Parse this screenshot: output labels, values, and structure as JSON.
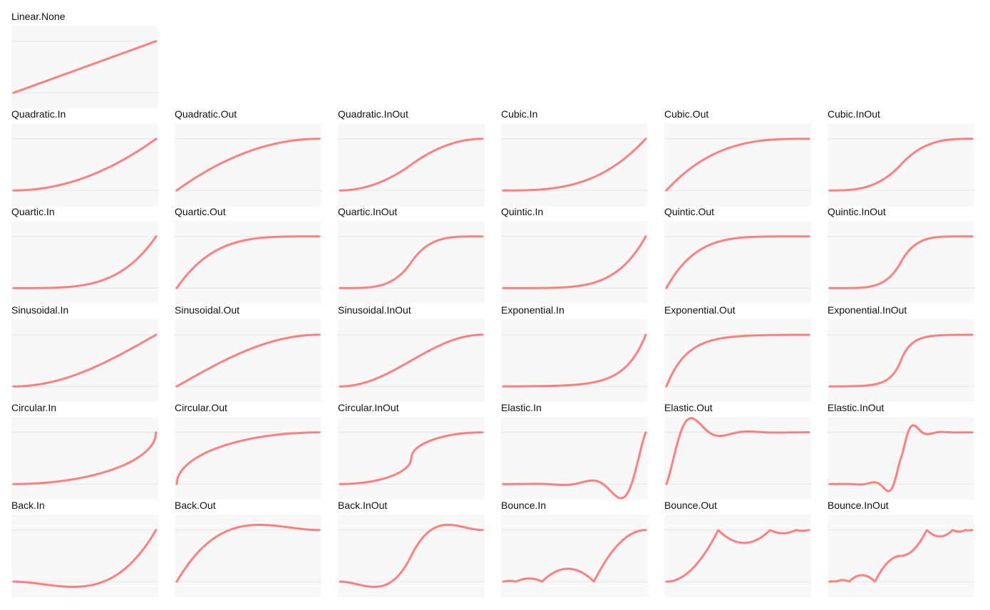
{
  "chart_data": [
    {
      "type": "line",
      "title": "Linear.None",
      "fn": "Linear.None",
      "ylim": [
        -0.3,
        1.3
      ]
    },
    {
      "type": "line",
      "title": "Quadratic.In",
      "fn": "Quadratic.In",
      "ylim": [
        -0.3,
        1.3
      ]
    },
    {
      "type": "line",
      "title": "Quadratic.Out",
      "fn": "Quadratic.Out",
      "ylim": [
        -0.3,
        1.3
      ]
    },
    {
      "type": "line",
      "title": "Quadratic.InOut",
      "fn": "Quadratic.InOut",
      "ylim": [
        -0.3,
        1.3
      ]
    },
    {
      "type": "line",
      "title": "Cubic.In",
      "fn": "Cubic.In",
      "ylim": [
        -0.3,
        1.3
      ]
    },
    {
      "type": "line",
      "title": "Cubic.Out",
      "fn": "Cubic.Out",
      "ylim": [
        -0.3,
        1.3
      ]
    },
    {
      "type": "line",
      "title": "Cubic.InOut",
      "fn": "Cubic.InOut",
      "ylim": [
        -0.3,
        1.3
      ]
    },
    {
      "type": "line",
      "title": "Quartic.In",
      "fn": "Quartic.In",
      "ylim": [
        -0.3,
        1.3
      ]
    },
    {
      "type": "line",
      "title": "Quartic.Out",
      "fn": "Quartic.Out",
      "ylim": [
        -0.3,
        1.3
      ]
    },
    {
      "type": "line",
      "title": "Quartic.InOut",
      "fn": "Quartic.InOut",
      "ylim": [
        -0.3,
        1.3
      ]
    },
    {
      "type": "line",
      "title": "Quintic.In",
      "fn": "Quintic.In",
      "ylim": [
        -0.3,
        1.3
      ]
    },
    {
      "type": "line",
      "title": "Quintic.Out",
      "fn": "Quintic.Out",
      "ylim": [
        -0.3,
        1.3
      ]
    },
    {
      "type": "line",
      "title": "Quintic.InOut",
      "fn": "Quintic.InOut",
      "ylim": [
        -0.3,
        1.3
      ]
    },
    {
      "type": "line",
      "title": "Sinusoidal.In",
      "fn": "Sinusoidal.In",
      "ylim": [
        -0.3,
        1.3
      ]
    },
    {
      "type": "line",
      "title": "Sinusoidal.Out",
      "fn": "Sinusoidal.Out",
      "ylim": [
        -0.3,
        1.3
      ]
    },
    {
      "type": "line",
      "title": "Sinusoidal.InOut",
      "fn": "Sinusoidal.InOut",
      "ylim": [
        -0.3,
        1.3
      ]
    },
    {
      "type": "line",
      "title": "Exponential.In",
      "fn": "Exponential.In",
      "ylim": [
        -0.3,
        1.3
      ]
    },
    {
      "type": "line",
      "title": "Exponential.Out",
      "fn": "Exponential.Out",
      "ylim": [
        -0.3,
        1.3
      ]
    },
    {
      "type": "line",
      "title": "Exponential.InOut",
      "fn": "Exponential.InOut",
      "ylim": [
        -0.3,
        1.3
      ]
    },
    {
      "type": "line",
      "title": "Circular.In",
      "fn": "Circular.In",
      "ylim": [
        -0.3,
        1.3
      ]
    },
    {
      "type": "line",
      "title": "Circular.Out",
      "fn": "Circular.Out",
      "ylim": [
        -0.3,
        1.3
      ]
    },
    {
      "type": "line",
      "title": "Circular.InOut",
      "fn": "Circular.InOut",
      "ylim": [
        -0.3,
        1.3
      ]
    },
    {
      "type": "line",
      "title": "Elastic.In",
      "fn": "Elastic.In",
      "ylim": [
        -0.3,
        1.3
      ]
    },
    {
      "type": "line",
      "title": "Elastic.Out",
      "fn": "Elastic.Out",
      "ylim": [
        -0.3,
        1.3
      ]
    },
    {
      "type": "line",
      "title": "Elastic.InOut",
      "fn": "Elastic.InOut",
      "ylim": [
        -0.3,
        1.3
      ]
    },
    {
      "type": "line",
      "title": "Back.In",
      "fn": "Back.In",
      "ylim": [
        -0.3,
        1.3
      ]
    },
    {
      "type": "line",
      "title": "Back.Out",
      "fn": "Back.Out",
      "ylim": [
        -0.3,
        1.3
      ]
    },
    {
      "type": "line",
      "title": "Back.InOut",
      "fn": "Back.InOut",
      "ylim": [
        -0.3,
        1.3
      ]
    },
    {
      "type": "line",
      "title": "Bounce.In",
      "fn": "Bounce.In",
      "ylim": [
        -0.3,
        1.3
      ]
    },
    {
      "type": "line",
      "title": "Bounce.Out",
      "fn": "Bounce.Out",
      "ylim": [
        -0.3,
        1.3
      ]
    },
    {
      "type": "line",
      "title": "Bounce.InOut",
      "fn": "Bounce.InOut",
      "ylim": [
        -0.3,
        1.3
      ]
    }
  ],
  "colors": {
    "curve": "#ff7f7f",
    "plot_background": "#f8f8f8",
    "reference_line": "#e4e4e4",
    "title_text": "#111111"
  }
}
